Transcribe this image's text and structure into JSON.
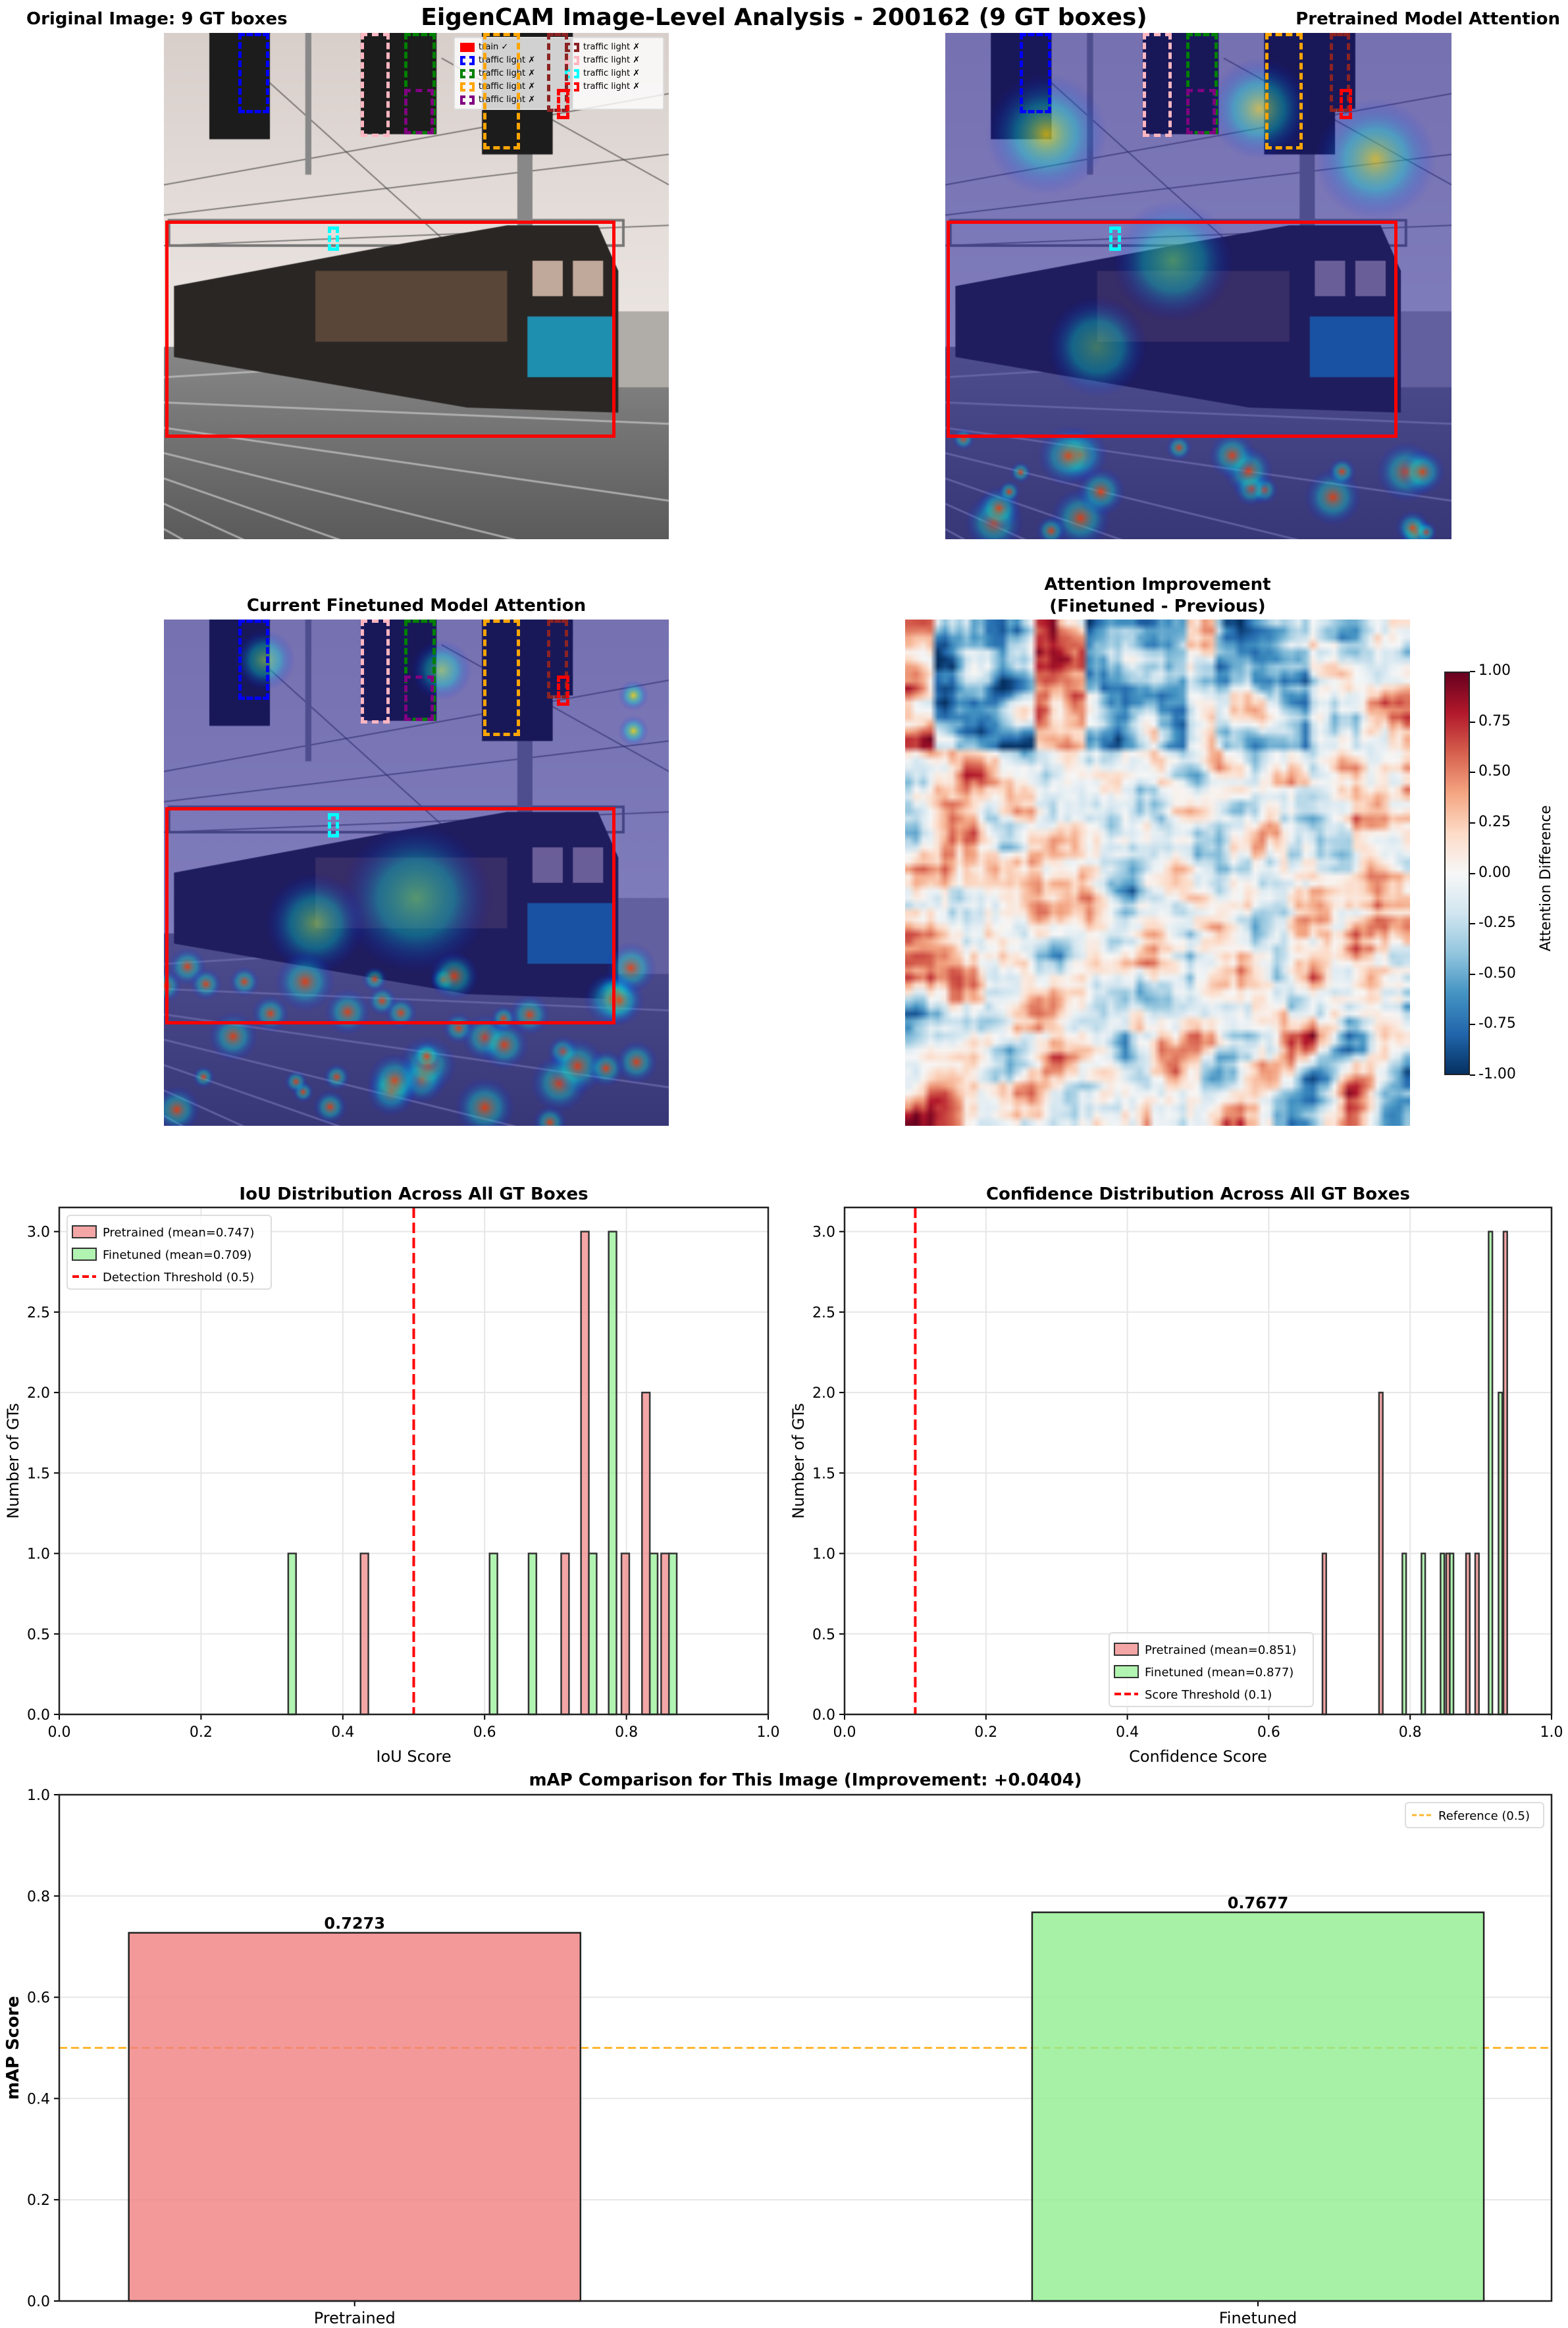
{
  "suptitle": "EigenCAM Image-Level Analysis - 200162 (9 GT boxes)",
  "panels": {
    "original_title": "Original Image: 9 GT boxes",
    "pretrained_title": "Pretrained Model Attention",
    "finetuned_title": "Current Finetuned Model Attention",
    "improvement_title_line1": "Attention Improvement",
    "improvement_title_line2": "(Finetuned - Previous)"
  },
  "gt_legend": [
    {
      "label": "train ✓",
      "color": "#ff0000",
      "style": "solid"
    },
    {
      "label": "traffic light ✗",
      "color": "#8b2323",
      "style": "dashed"
    },
    {
      "label": "traffic light ✗",
      "color": "#0000ff",
      "style": "dashed"
    },
    {
      "label": "traffic light ✗",
      "color": "#ffb6c1",
      "style": "dashed"
    },
    {
      "label": "traffic light ✗",
      "color": "#008000",
      "style": "dashed"
    },
    {
      "label": "traffic light ✗",
      "color": "#00ffff",
      "style": "dashed"
    },
    {
      "label": "traffic light ✗",
      "color": "#ffa500",
      "style": "dashed"
    },
    {
      "label": "traffic light ✗",
      "color": "#ff0000",
      "style": "dashed"
    },
    {
      "label": "traffic light ✗",
      "color": "#800080",
      "style": "dashed"
    }
  ],
  "colorbar": {
    "label": "Attention Difference",
    "colormap": "RdBu_r",
    "range": [
      -1,
      1
    ],
    "ticks": [
      "1.00",
      "0.75",
      "0.50",
      "0.25",
      "0.00",
      "-0.25",
      "-0.50",
      "-0.75",
      "-1.00"
    ]
  },
  "chart_data": [
    {
      "type": "bar",
      "subtype": "histogram",
      "title": "IoU Distribution Across All GT Boxes",
      "xlabel": "IoU Score",
      "ylabel": "Number of GTs",
      "xlim": [
        0,
        1
      ],
      "ylim": [
        0,
        3.15
      ],
      "xticks": [
        "0.0",
        "0.2",
        "0.4",
        "0.6",
        "0.8",
        "1.0"
      ],
      "yticks": [
        "0.0",
        "0.5",
        "1.0",
        "1.5",
        "2.0",
        "2.5",
        "3.0"
      ],
      "grid": true,
      "legend_position": "upper-left",
      "bin_width": 0.011,
      "series": [
        {
          "name": "Pretrained (mean=0.747)",
          "color": "#f08080",
          "bins": [
            [
              0.425,
              1
            ],
            [
              0.708,
              1
            ],
            [
              0.736,
              3
            ],
            [
              0.793,
              1
            ],
            [
              0.822,
              2
            ],
            [
              0.849,
              1
            ]
          ]
        },
        {
          "name": "Finetuned (mean=0.709)",
          "color": "#90ee90",
          "bins": [
            [
              0.323,
              1
            ],
            [
              0.607,
              1
            ],
            [
              0.662,
              1
            ],
            [
              0.747,
              1
            ],
            [
              0.775,
              3
            ],
            [
              0.833,
              1
            ],
            [
              0.86,
              1
            ]
          ]
        }
      ],
      "threshold": {
        "name": "Detection Threshold (0.5)",
        "x": 0.5,
        "color": "#ff0000"
      }
    },
    {
      "type": "bar",
      "subtype": "histogram",
      "title": "Confidence Distribution Across All GT Boxes",
      "xlabel": "Confidence Score",
      "ylabel": "Number of GTs",
      "xlim": [
        0,
        1
      ],
      "ylim": [
        0,
        3.15
      ],
      "xticks": [
        "0.0",
        "0.2",
        "0.4",
        "0.6",
        "0.8",
        "1.0"
      ],
      "yticks": [
        "0.0",
        "0.5",
        "1.0",
        "1.5",
        "2.0",
        "2.5",
        "3.0"
      ],
      "grid": true,
      "legend_position": "lower-center",
      "bin_width": 0.0053,
      "series": [
        {
          "name": "Pretrained (mean=0.851)",
          "color": "#f08080",
          "bins": [
            [
              0.676,
              1
            ],
            [
              0.756,
              2
            ],
            [
              0.851,
              1
            ],
            [
              0.879,
              1
            ],
            [
              0.892,
              1
            ],
            [
              0.932,
              3
            ]
          ]
        },
        {
          "name": "Finetuned (mean=0.877)",
          "color": "#90ee90",
          "bins": [
            [
              0.789,
              1
            ],
            [
              0.816,
              1
            ],
            [
              0.843,
              1
            ],
            [
              0.856,
              1
            ],
            [
              0.911,
              3
            ],
            [
              0.925,
              2
            ]
          ]
        }
      ],
      "threshold": {
        "name": "Score Threshold (0.1)",
        "x": 0.1,
        "color": "#ff0000"
      }
    },
    {
      "type": "bar",
      "title": "mAP Comparison for This Image (Improvement: +0.0404)",
      "xlabel": "",
      "ylabel": "mAP Score",
      "categories": [
        "Pretrained",
        "Finetuned"
      ],
      "values": [
        0.7273,
        0.7677
      ],
      "value_labels": [
        "0.7273",
        "0.7677"
      ],
      "colors": [
        "#f08080",
        "#90ee90"
      ],
      "ylim": [
        0,
        1.0
      ],
      "yticks": [
        "0.0",
        "0.2",
        "0.4",
        "0.6",
        "0.8",
        "1.0"
      ],
      "grid": true,
      "legend_position": "upper-right",
      "reference": {
        "name": "Reference (0.5)",
        "y": 0.5,
        "color": "#ffb732"
      }
    }
  ]
}
